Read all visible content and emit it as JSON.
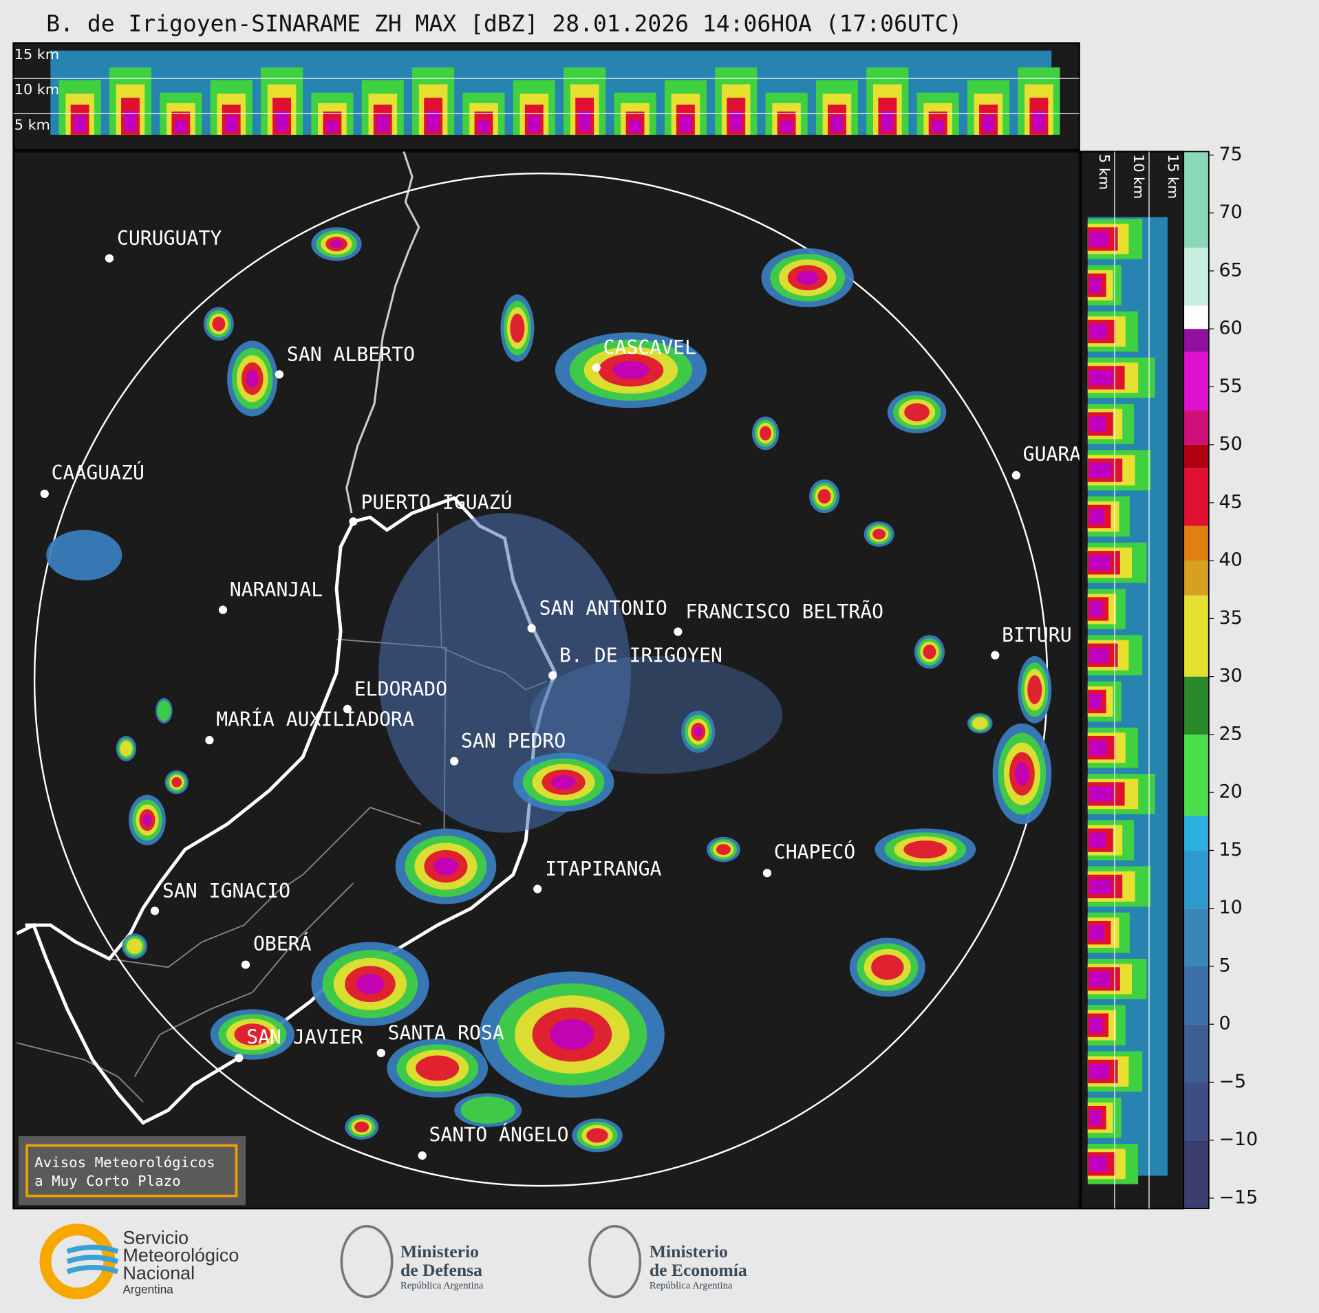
{
  "title": "B. de Irigoyen-SINARAME ZH MAX [dBZ] 28.01.2026 14:06HOA (17:06UTC)",
  "top_panel": {
    "height_labels": [
      "15 km",
      "10 km",
      "5 km"
    ]
  },
  "side_panel": {
    "height_labels": [
      "5 km",
      "10 km",
      "15 km"
    ]
  },
  "cities": [
    "CURUGUATY",
    "SAN ALBERTO",
    "CAAGUAZÚ",
    "CASCAVEL",
    "GUARA",
    "PUERTO IGUAZÚ",
    "NARANJAL",
    "SAN ANTONIO",
    "FRANCISCO BELTRÃO",
    "BITURU",
    "B. DE IRIGOYEN",
    "ELDORADO",
    "MARÍA AUXILIADORA",
    "SAN PEDRO",
    "CHAPECÓ",
    "ITAPIRANGA",
    "SAN IGNACIO",
    "OBERÁ",
    "SAN JAVIER",
    "SANTA ROSA",
    "SANTO ÁNGELO"
  ],
  "colorbar": {
    "ylim": [
      -15.9,
      75.3
    ],
    "yticks": [
      {
        "value": -15,
        "label": "−15"
      },
      {
        "value": -10,
        "label": "−10"
      },
      {
        "value": -5,
        "label": "−5"
      },
      0,
      5,
      10,
      15,
      20,
      25,
      30,
      35,
      40,
      45,
      50,
      55,
      60,
      65,
      70,
      75
    ]
  },
  "notice": [
    "Avisos Meteorológicos",
    "a Muy Corto Plazo"
  ],
  "logos": {
    "smn": [
      "Servicio",
      "Meteorológico",
      "Nacional",
      "Argentina"
    ],
    "defensa": [
      "Ministerio",
      "de Defensa",
      "República Argentina"
    ],
    "economia": [
      "Ministerio",
      "de Economía",
      "República Argentina"
    ]
  }
}
